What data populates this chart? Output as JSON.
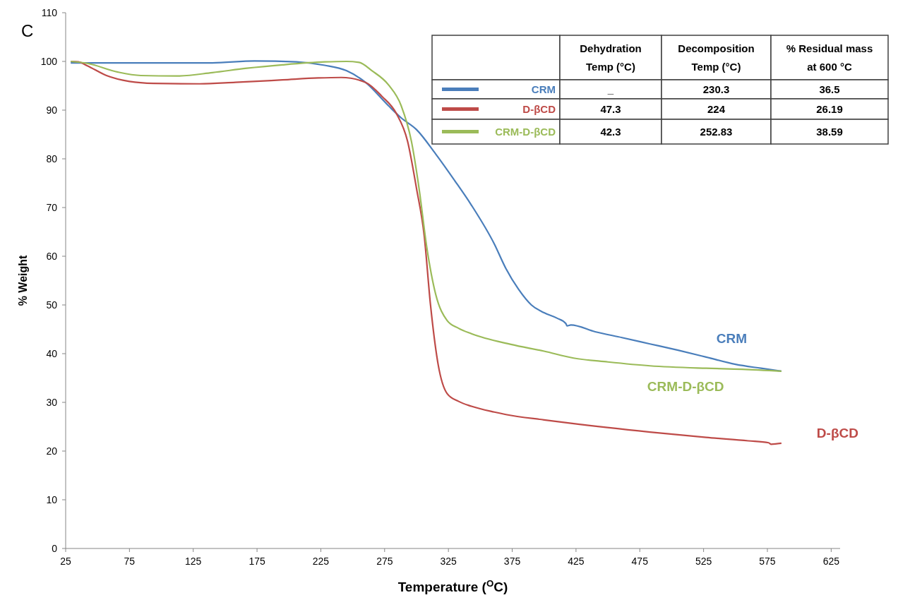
{
  "chart_data": {
    "type": "line",
    "xlabel": "Temperature ($^{O}$C)",
    "ylabel": "% Weight",
    "xlim": [
      25,
      632
    ],
    "xticks": [
      25,
      75,
      125,
      175,
      225,
      275,
      325,
      375,
      425,
      475,
      525,
      575,
      625
    ],
    "ylim": [
      0,
      110
    ],
    "yticks": [
      0,
      10,
      20,
      30,
      40,
      50,
      60,
      70,
      80,
      90,
      100,
      110
    ],
    "grid": false,
    "legend": "top right",
    "marker": "none",
    "line_style": "solid",
    "series": [
      {
        "name": "CRM",
        "color": "#4a7ebb",
        "x": [
          29,
          60,
          100,
          140,
          173,
          206,
          228,
          245,
          260,
          278,
          288,
          300,
          315,
          330,
          343,
          361,
          370,
          380,
          390,
          400,
          410,
          417,
          418,
          421,
          440,
          461,
          483,
          505,
          527,
          550,
          570,
          586
        ],
        "values": [
          99.7,
          99.7,
          99.7,
          99.7,
          100.1,
          99.9,
          99.2,
          98.1,
          95.7,
          90.9,
          88.4,
          86,
          81,
          75.5,
          70.5,
          62.5,
          57.5,
          53.2,
          50,
          48.4,
          47.3,
          46.2,
          45.7,
          45.9,
          44.5,
          43.3,
          42,
          40.7,
          39.3,
          37.8,
          37,
          36.4
        ]
      },
      {
        "name": "D-βCD",
        "color": "#be4b48",
        "x": [
          29,
          35,
          42,
          57,
          75,
          94,
          130,
          158,
          195,
          223,
          241,
          260,
          273,
          284,
          293,
          300,
          306,
          311,
          317,
          324,
          333,
          343,
          361,
          370,
          400,
          421,
          483,
          527,
          560,
          576,
          578,
          586
        ],
        "values": [
          100,
          99.9,
          99.1,
          97.1,
          95.9,
          95.5,
          95.4,
          95.7,
          96.2,
          96.6,
          96.7,
          95.7,
          92.8,
          89.4,
          83.6,
          73.9,
          64.3,
          49.9,
          37.7,
          31.8,
          30.2,
          29.2,
          28,
          27.5,
          26.4,
          25.7,
          23.9,
          22.8,
          22.1,
          21.7,
          21.4,
          21.6
        ]
      },
      {
        "name": "CRM-D-βCD",
        "color": "#9bbb59",
        "x": [
          29,
          42,
          66,
          84,
          112,
          140,
          167,
          195,
          228,
          245,
          255,
          265,
          278,
          288,
          296,
          302,
          308,
          315,
          324,
          333,
          343,
          374,
          400,
          423,
          450,
          483,
          527,
          555,
          586
        ],
        "values": [
          100,
          99.6,
          97.8,
          97.1,
          97,
          97.7,
          98.6,
          99.3,
          99.9,
          100,
          99.8,
          98.1,
          95.2,
          90.9,
          83.6,
          73.9,
          61.9,
          52.2,
          46.8,
          45.2,
          44.1,
          41.9,
          40.5,
          39.1,
          38.3,
          37.5,
          37,
          36.8,
          36.4
        ]
      }
    ],
    "annotations": [
      "C",
      "Dehydration Temp (°C)",
      "Decomposition Temp (°C)",
      "% Residual mass at 600 °C",
      "_",
      "230.3",
      "36.5",
      "47.3",
      "224",
      "26.19",
      "42.3",
      "252.83",
      "38.59"
    ]
  }
}
